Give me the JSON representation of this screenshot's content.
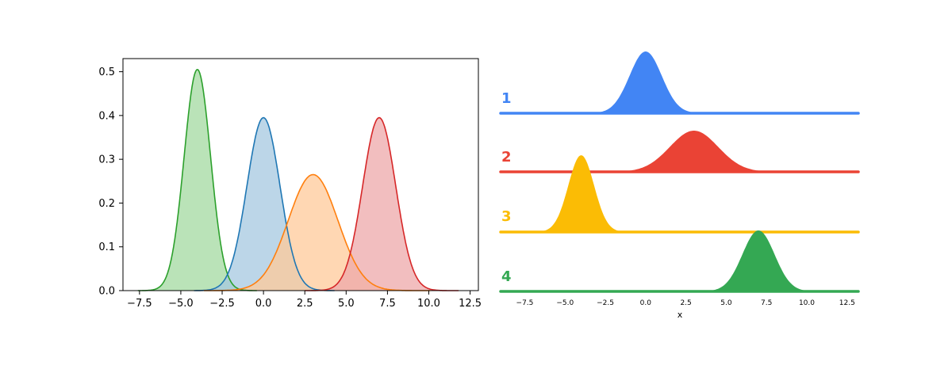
{
  "chart_data": [
    {
      "type": "area",
      "title": "",
      "xlabel": "",
      "ylabel": "",
      "xlim": [
        -8.5,
        13
      ],
      "ylim": [
        0,
        0.53
      ],
      "x_ticks": [
        "−7.5",
        "−5.0",
        "−2.5",
        "0.0",
        "2.5",
        "5.0",
        "7.5",
        "10.0",
        "12.5"
      ],
      "x_tick_values": [
        -7.5,
        -5.0,
        -2.5,
        0.0,
        2.5,
        5.0,
        7.5,
        10.0,
        12.5
      ],
      "y_ticks": [
        "0.0",
        "0.1",
        "0.2",
        "0.3",
        "0.4",
        "0.5"
      ],
      "y_tick_values": [
        0.0,
        0.1,
        0.2,
        0.3,
        0.4,
        0.5
      ],
      "grid": false,
      "series": [
        {
          "mean": -4.0,
          "sd": 0.8,
          "peak": 0.505,
          "x_range": [
            -7.6,
            -0.4
          ],
          "color": "#2ca02c",
          "fill": "#a3d9a0"
        },
        {
          "mean": 0.0,
          "sd": 1.0,
          "peak": 0.395,
          "x_range": [
            -4.2,
            4.3
          ],
          "color": "#1f77b4",
          "fill": "#a6c8e0"
        },
        {
          "mean": 3.0,
          "sd": 1.5,
          "peak": 0.265,
          "x_range": [
            -3.6,
            10.1
          ],
          "color": "#ff7f0e",
          "fill": "#ffc99a"
        },
        {
          "mean": 7.0,
          "sd": 1.0,
          "peak": 0.395,
          "x_range": [
            2.5,
            11.8
          ],
          "color": "#d62728",
          "fill": "#eea8a9"
        }
      ]
    },
    {
      "type": "area",
      "title": "",
      "xlabel": "x",
      "ylabel": "",
      "xlim": [
        -9,
        13.2
      ],
      "x_ticks": [
        "−7.5",
        "−5.0",
        "−2.5",
        "0.0",
        "2.5",
        "5.0",
        "7.5",
        "10.0",
        "12.5"
      ],
      "x_tick_values": [
        -7.5,
        -5.0,
        -2.5,
        0.0,
        2.5,
        5.0,
        7.5,
        10.0,
        12.5
      ],
      "grid": false,
      "series": [
        {
          "label": "1",
          "mean": 0.0,
          "sd": 1.0,
          "color": "#4285f4"
        },
        {
          "label": "2",
          "mean": 3.0,
          "sd": 1.5,
          "color": "#ea4335"
        },
        {
          "label": "3",
          "mean": -4.0,
          "sd": 0.8,
          "color": "#fbbc05"
        },
        {
          "label": "4",
          "mean": 7.0,
          "sd": 1.0,
          "color": "#34a853"
        }
      ]
    }
  ]
}
